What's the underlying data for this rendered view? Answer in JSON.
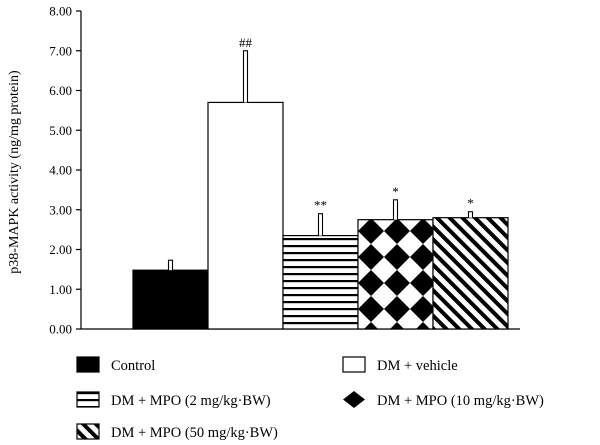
{
  "chart_data": {
    "type": "bar",
    "ylabel": "p38-MAPK activity (ng/mg protein)",
    "xlabel": "",
    "ylim": [
      0,
      8
    ],
    "yticks": [
      "0.00",
      "1.00",
      "2.00",
      "3.00",
      "4.00",
      "5.00",
      "6.00",
      "7.00",
      "8.00"
    ],
    "grid": false,
    "legend_position": "bottom",
    "series": [
      {
        "name": "Control",
        "value": 1.48,
        "error": 0.25,
        "significance": "",
        "pattern": "solid-black"
      },
      {
        "name": "DM + vehicle",
        "value": 5.7,
        "error": 1.3,
        "significance": "##",
        "pattern": "white"
      },
      {
        "name": "DM + MPO (2 mg/kg·BW)",
        "value": 2.35,
        "error": 0.55,
        "significance": "**",
        "pattern": "horizontal-stripes"
      },
      {
        "name": "DM + MPO (10 mg/kg·BW)",
        "value": 2.75,
        "error": 0.5,
        "significance": "*",
        "pattern": "checker-diamond"
      },
      {
        "name": "DM + MPO (50 mg/kg·BW)",
        "value": 2.8,
        "error": 0.15,
        "significance": "*",
        "pattern": "diagonal-stripes"
      }
    ]
  }
}
